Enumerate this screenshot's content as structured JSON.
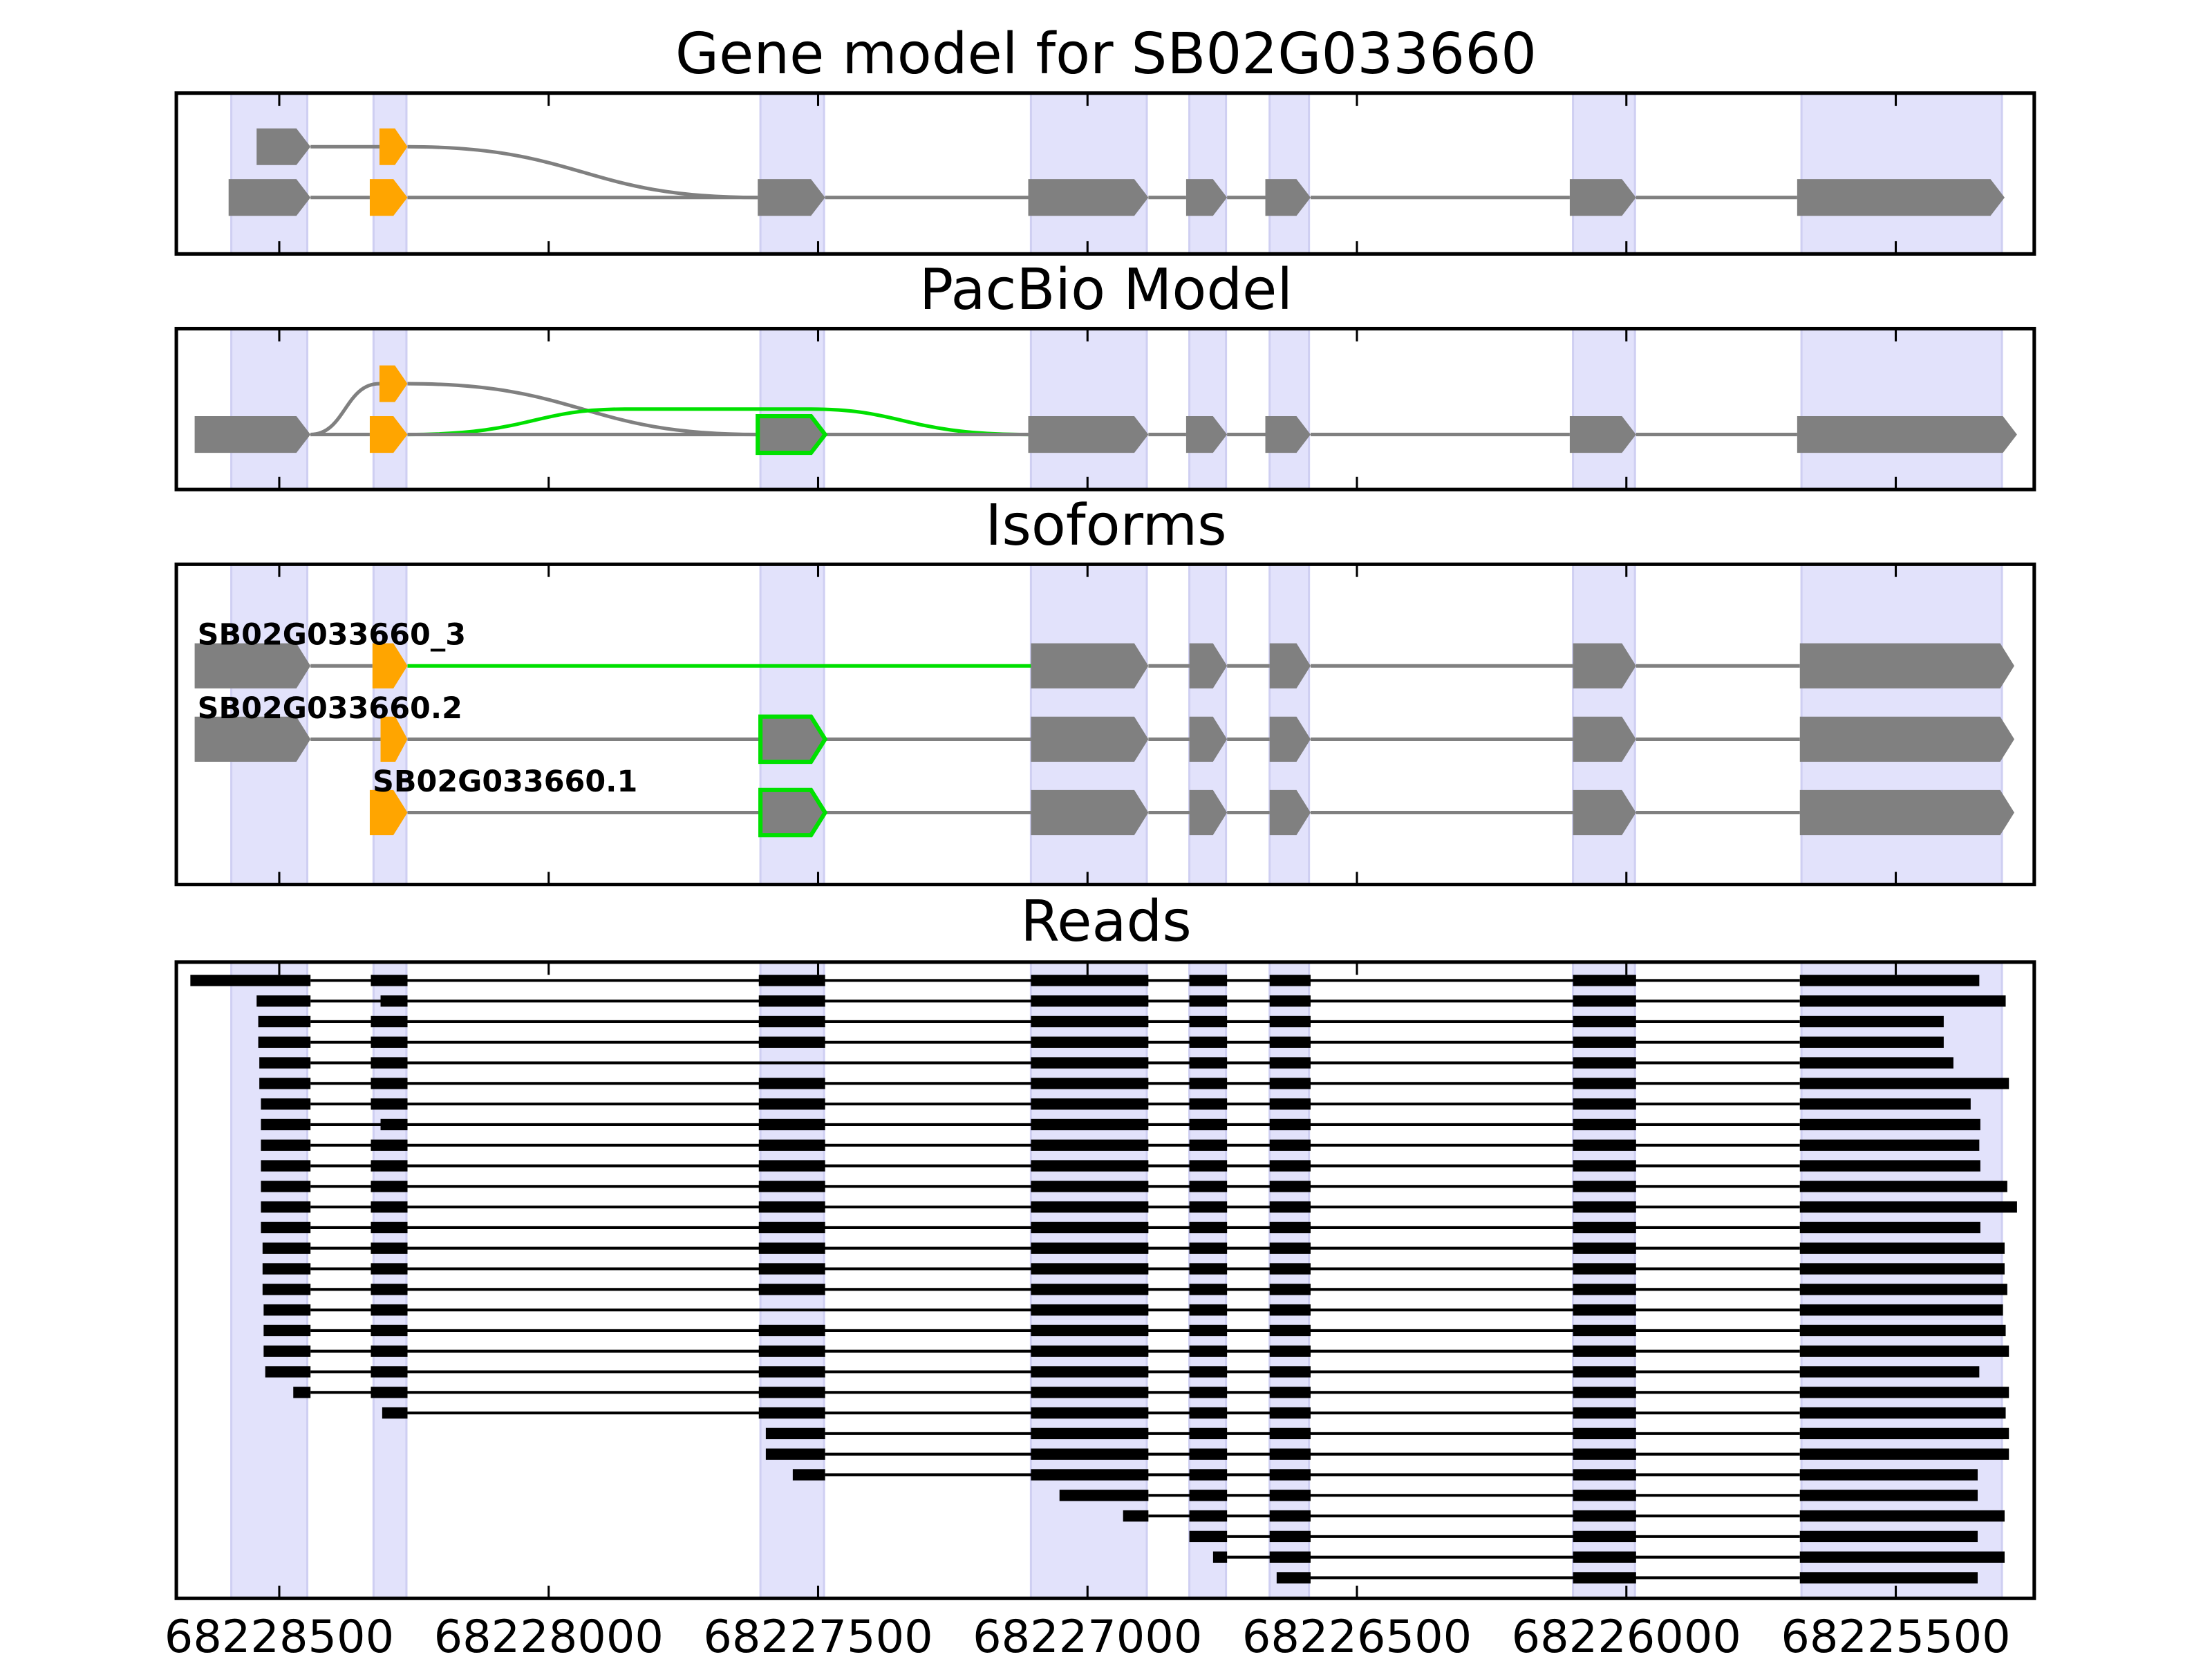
{
  "chart_data": {
    "type": "gene-structure",
    "xlim": [
      68228691,
      68225243
    ],
    "x_ticks": [
      68228500,
      68228000,
      68227500,
      68227000,
      68226500,
      68226000,
      68225500
    ],
    "x_tick_labels": [
      "68228500",
      "68228000",
      "68227500",
      "68227000",
      "68226500",
      "68226000",
      "68225500"
    ],
    "colors": {
      "exon": "#808080",
      "utr": "#ffa500",
      "alt": "#00e000",
      "read": "#000000",
      "band": "#e2e2fb",
      "band_edge": "#cfcff2"
    },
    "exon_bands": [
      [
        68228589,
        68228448
      ],
      [
        68228325,
        68228264
      ],
      [
        68227607,
        68227489
      ],
      [
        68227105,
        68226890
      ],
      [
        68226811,
        68226743
      ],
      [
        68226662,
        68226589
      ],
      [
        68226099,
        68225984
      ],
      [
        68225675,
        68225303
      ]
    ],
    "panels": [
      {
        "title": "Gene model for SB02G033660",
        "tracks": [
          {
            "exons": [
              [
                68228542,
                68228442,
                "exon"
              ],
              [
                68228314,
                68228262,
                "utr"
              ]
            ],
            "introns": [
              "exon"
            ]
          },
          {
            "exons": [
              [
                68228594,
                68228442,
                "exon"
              ],
              [
                68228332,
                68228262,
                "utr"
              ],
              [
                68227612,
                68227487,
                "exon"
              ],
              [
                68227110,
                68226887,
                "exon"
              ],
              [
                68226817,
                68226741,
                "exon"
              ],
              [
                68226670,
                68226586,
                "exon"
              ],
              [
                68226105,
                68225982,
                "exon"
              ],
              [
                68225683,
                68225298,
                "exon"
              ]
            ],
            "introns": [
              "exon",
              "exon",
              "exon",
              "exon",
              "exon",
              "exon",
              "exon"
            ]
          }
        ],
        "connections": [
          {
            "from": [
              68228262,
              0
            ],
            "to": [
              68227612,
              1
            ],
            "color": "exon"
          }
        ]
      },
      {
        "title": "PacBio Model",
        "tracks": [
          {
            "exons": [
              [
                68228314,
                68228262,
                "utr"
              ]
            ],
            "introns": []
          },
          {
            "exons": [
              [
                68228657,
                68228442,
                "exon"
              ],
              [
                68228332,
                68228262,
                "utr"
              ],
              [
                68227612,
                68227487,
                "alt-outline"
              ],
              [
                68227110,
                68226887,
                "exon"
              ],
              [
                68226817,
                68226741,
                "exon"
              ],
              [
                68226670,
                68226586,
                "exon"
              ],
              [
                68226105,
                68225982,
                "exon"
              ],
              [
                68225683,
                68225275,
                "exon"
              ]
            ],
            "introns": [
              "exon",
              "exon",
              "exon",
              "exon",
              "exon",
              "exon",
              "exon"
            ]
          }
        ],
        "connections": [
          {
            "from": [
              68228442,
              1
            ],
            "to": [
              68228314,
              0
            ],
            "color": "exon"
          },
          {
            "from": [
              68228262,
              0
            ],
            "to": [
              68227612,
              1
            ],
            "color": "exon"
          },
          {
            "from": [
              68228262,
              1
            ],
            "to": [
              68227110,
              1
            ],
            "color": "alt"
          }
        ]
      },
      {
        "title": "Isoforms",
        "tracks": [
          {
            "label": "SB02G033660_3",
            "exons": [
              [
                68228657,
                68228442,
                "exon"
              ],
              [
                68228327,
                68228262,
                "utr"
              ],
              [
                68227105,
                68226887,
                "exon"
              ],
              [
                68226811,
                68226741,
                "exon"
              ],
              [
                68226662,
                68226586,
                "exon"
              ],
              [
                68226099,
                68225982,
                "exon"
              ],
              [
                68225678,
                68225280,
                "exon"
              ]
            ],
            "introns": [
              "exon",
              "alt",
              "exon",
              "exon",
              "exon",
              "exon"
            ]
          },
          {
            "label": "SB02G033660.2",
            "exons": [
              [
                68228657,
                68228442,
                "exon"
              ],
              [
                68228312,
                68228262,
                "utr"
              ],
              [
                68227607,
                68227487,
                "alt-outline"
              ],
              [
                68227105,
                68226887,
                "exon"
              ],
              [
                68226811,
                68226741,
                "exon"
              ],
              [
                68226662,
                68226586,
                "exon"
              ],
              [
                68226099,
                68225982,
                "exon"
              ],
              [
                68225678,
                68225280,
                "exon"
              ]
            ],
            "introns": [
              "exon",
              "exon",
              "exon",
              "exon",
              "exon",
              "exon",
              "exon"
            ]
          },
          {
            "label": "SB02G033660.1",
            "exons": [
              [
                68228332,
                68228262,
                "utr"
              ],
              [
                68227607,
                68227487,
                "alt-outline"
              ],
              [
                68227105,
                68226887,
                "exon"
              ],
              [
                68226811,
                68226741,
                "exon"
              ],
              [
                68226662,
                68226586,
                "exon"
              ],
              [
                68226099,
                68225982,
                "exon"
              ],
              [
                68225678,
                68225280,
                "exon"
              ]
            ],
            "introns": [
              "exon",
              "exon",
              "exon",
              "exon",
              "exon",
              "exon"
            ]
          }
        ],
        "connections": []
      }
    ],
    "reads_panel": {
      "title": "Reads",
      "read_exons": [
        [
          null,
          68228442
        ],
        [
          68228330,
          68228262
        ],
        [
          68227610,
          68227487
        ],
        [
          68227105,
          68226887
        ],
        [
          68226811,
          68226741
        ],
        [
          68226662,
          68226586
        ],
        [
          68226099,
          68225982
        ],
        [
          68225678,
          null
        ]
      ],
      "reads": [
        {
          "start": 68228665,
          "end": 68225345
        },
        {
          "start": 68228542,
          "end": 68225296,
          "exon_start_override": {
            "1": 68228312
          }
        },
        {
          "start": 68228539,
          "end": 68225411
        },
        {
          "start": 68228539,
          "end": 68225411
        },
        {
          "start": 68228537,
          "end": 68225393,
          "skip": [
            2
          ]
        },
        {
          "start": 68228537,
          "end": 68225290
        },
        {
          "start": 68228534,
          "end": 68225361
        },
        {
          "start": 68228534,
          "end": 68225343,
          "exon_start_override": {
            "1": 68228312
          }
        },
        {
          "start": 68228534,
          "end": 68225345
        },
        {
          "start": 68228534,
          "end": 68225343
        },
        {
          "start": 68228534,
          "end": 68225293
        },
        {
          "start": 68228534,
          "end": 68225275
        },
        {
          "start": 68228534,
          "end": 68225343
        },
        {
          "start": 68228531,
          "end": 68225298
        },
        {
          "start": 68228531,
          "end": 68225298
        },
        {
          "start": 68228531,
          "end": 68225293
        },
        {
          "start": 68228529,
          "end": 68225301,
          "skip": [
            2
          ]
        },
        {
          "start": 68228529,
          "end": 68225296
        },
        {
          "start": 68228529,
          "end": 68225290
        },
        {
          "start": 68228526,
          "end": 68225345
        },
        {
          "start": 68228474,
          "end": 68225290
        },
        {
          "start": 68228309,
          "end": 68225296
        },
        {
          "start": 68227597,
          "end": 68225290
        },
        {
          "start": 68227597,
          "end": 68225290
        },
        {
          "start": 68227547,
          "end": 68225348
        },
        {
          "start": 68227052,
          "end": 68225348
        },
        {
          "start": 68226934,
          "end": 68225298
        },
        {
          "start": 68226811,
          "end": 68225348
        },
        {
          "start": 68226767,
          "end": 68225298
        },
        {
          "start": 68226649,
          "end": 68225348
        }
      ]
    }
  }
}
